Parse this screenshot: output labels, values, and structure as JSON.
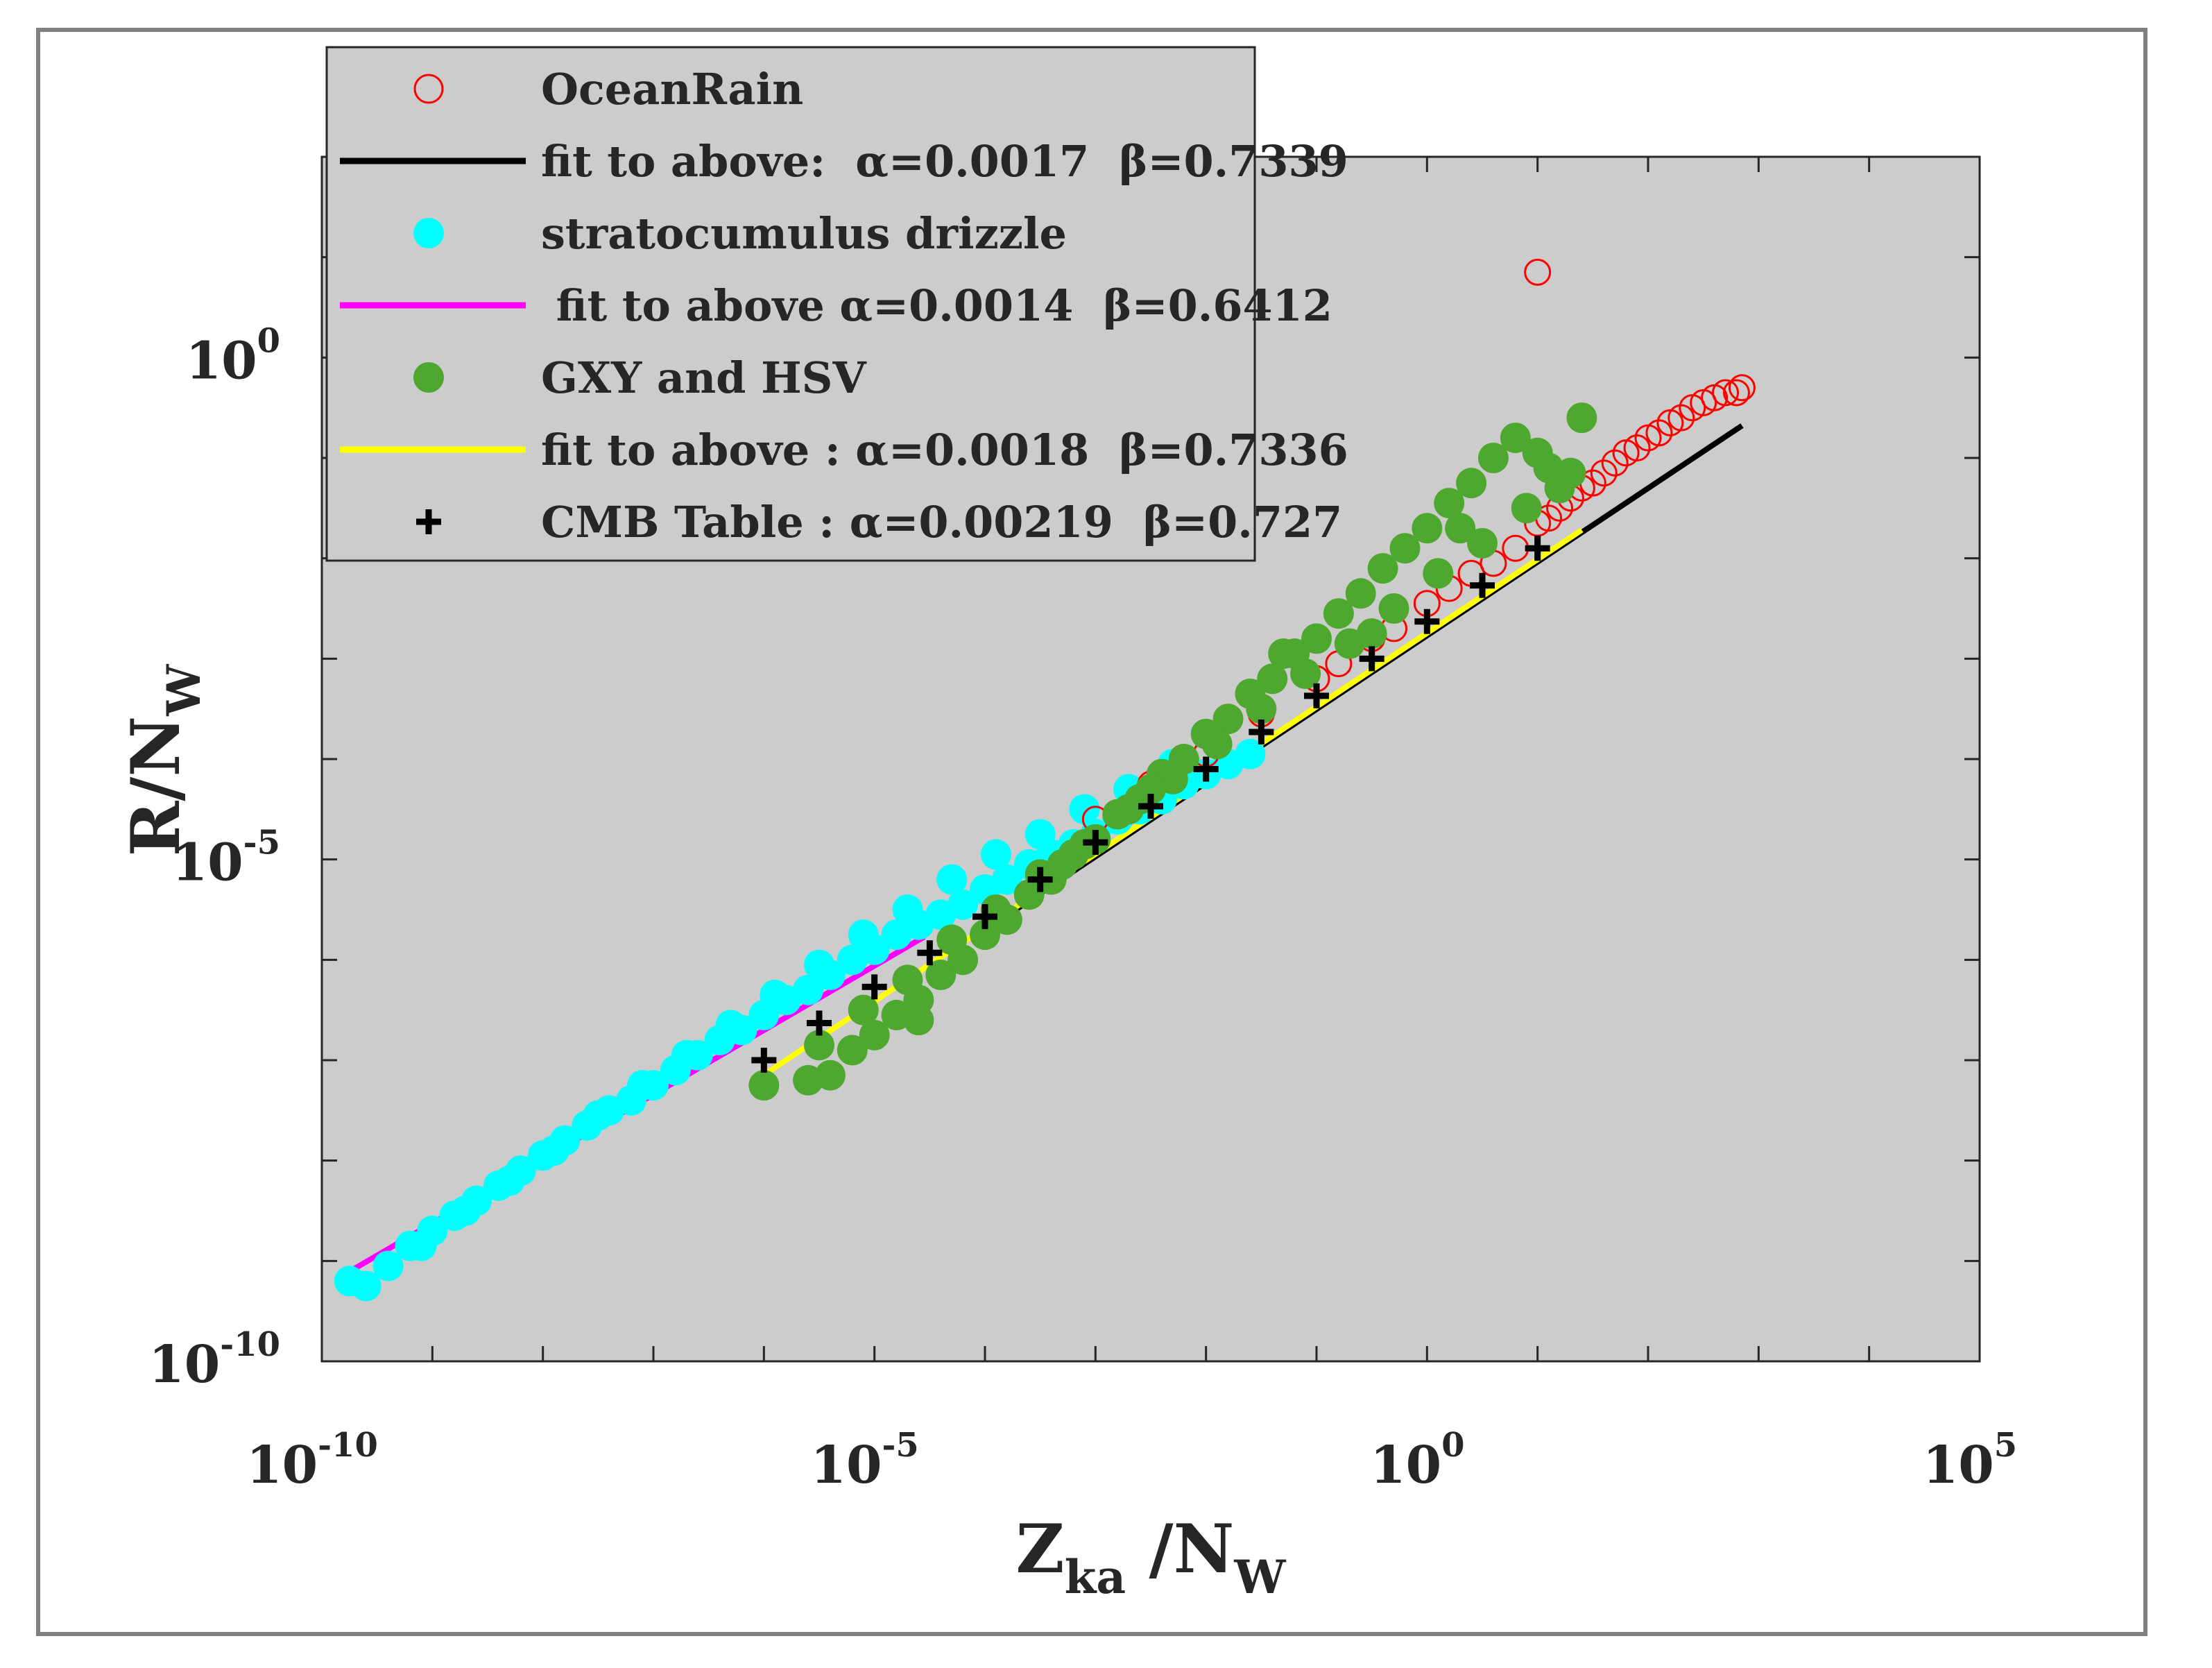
{
  "chart_data": {
    "type": "scatter",
    "title": "",
    "xlabel": {
      "main": "Z",
      "sub": "ka",
      "rest": " /N",
      "sub2": "W"
    },
    "ylabel": {
      "main": "R/N",
      "sub": "W"
    },
    "x_scale": "log",
    "y_scale": "log",
    "xlim_exp": [
      -10,
      5
    ],
    "ylim_exp": [
      -10,
      2
    ],
    "x_ticks": [
      {
        "base": "10",
        "exp": "-10",
        "v": -10
      },
      {
        "base": "10",
        "exp": "-5",
        "v": -5
      },
      {
        "base": "10",
        "exp": "0",
        "v": 0
      },
      {
        "base": "10",
        "exp": "5",
        "v": 5
      }
    ],
    "y_ticks": [
      {
        "base": "10",
        "exp": "-10",
        "v": -10
      },
      {
        "base": "10",
        "exp": "-5",
        "v": -5
      },
      {
        "base": "10",
        "exp": "0",
        "v": 0
      }
    ],
    "grid": false,
    "legend_position": "top-left",
    "background": "#cccccc",
    "legend": [
      {
        "label": "OceanRain",
        "marker": "open-circle",
        "color": "#ff0000"
      },
      {
        "label": "fit to above:  α=0.0017  β=0.7339",
        "marker": "line",
        "color": "#000000"
      },
      {
        "label": "stratocumulus drizzle",
        "marker": "filled-circle",
        "color": "#00ffff"
      },
      {
        "label": " fit to above α=0.0014  β=0.6412",
        "marker": "line",
        "color": "#ff00ff"
      },
      {
        "label": "GXY and HSV",
        "marker": "filled-circle",
        "color": "#4ea72e"
      },
      {
        "label": "fit to above : α=0.0018  β=0.7336",
        "marker": "line",
        "color": "#ffff00"
      },
      {
        "label": "CMB Table : α=0.00219  β=0.727",
        "marker": "plus",
        "color": "#000000"
      }
    ],
    "fits": [
      {
        "name": "OceanRain fit",
        "alpha": 0.0017,
        "beta": 0.7339,
        "color": "#000000",
        "x_range_exp": [
          -3.8,
          2.85
        ]
      },
      {
        "name": "stratocumulus drizzle fit",
        "alpha": 0.0014,
        "beta": 0.6412,
        "color": "#ff00ff",
        "x_range_exp": [
          -9.75,
          -4.55
        ]
      },
      {
        "name": "GXY and HSV fit",
        "alpha": 0.0018,
        "beta": 0.7336,
        "color": "#ffff00",
        "x_range_exp": [
          -6.1,
          1.4
        ]
      }
    ],
    "series": [
      {
        "name": "CMB Table",
        "marker": "plus",
        "color": "#000000",
        "x_exp": [
          -6.0,
          -5.5,
          -5.0,
          -4.5,
          -4.0,
          -3.5,
          -3.0,
          -2.5,
          -2.0,
          -1.5,
          -1.0,
          -0.5,
          0.0,
          0.5,
          1.0
        ],
        "y_exp": [
          -7.0,
          -6.63,
          -6.27,
          -5.93,
          -5.57,
          -5.2,
          -4.83,
          -4.47,
          -4.1,
          -3.73,
          -3.37,
          -3.0,
          -2.63,
          -2.27,
          -1.9
        ]
      },
      {
        "name": "OceanRain",
        "marker": "open-circle",
        "color": "#ff0000",
        "x_exp": [
          -3.0,
          -2.5,
          -2.0,
          -1.5,
          -1.0,
          -0.8,
          -0.5,
          -0.3,
          0.0,
          0.2,
          0.4,
          0.6,
          0.8,
          1.0,
          1.1,
          1.2,
          1.3,
          1.4,
          1.5,
          1.6,
          1.7,
          1.8,
          1.9,
          2.0,
          2.1,
          2.2,
          2.3,
          2.4,
          2.5,
          2.6,
          2.7,
          2.8,
          2.85,
          1.0
        ],
        "y_exp": [
          -4.6,
          -4.25,
          -3.95,
          -3.55,
          -3.2,
          -3.05,
          -2.8,
          -2.7,
          -2.45,
          -2.3,
          -2.15,
          -2.05,
          -1.9,
          -1.65,
          -1.6,
          -1.5,
          -1.4,
          -1.3,
          -1.25,
          -1.15,
          -1.05,
          -0.95,
          -0.9,
          -0.8,
          -0.75,
          -0.65,
          -0.6,
          -0.5,
          -0.45,
          -0.4,
          -0.35,
          -0.35,
          -0.3,
          0.85
        ]
      },
      {
        "name": "stratocumulus drizzle",
        "marker": "filled-circle",
        "color": "#00ffff",
        "x_exp": [
          -9.75,
          -9.6,
          -9.4,
          -9.2,
          -9.0,
          -8.8,
          -8.6,
          -8.4,
          -8.2,
          -8.0,
          -7.8,
          -7.6,
          -7.4,
          -7.2,
          -7.0,
          -6.8,
          -6.6,
          -6.4,
          -6.2,
          -6.0,
          -5.8,
          -5.6,
          -5.4,
          -5.2,
          -5.0,
          -4.8,
          -4.6,
          -4.4,
          -4.2,
          -4.0,
          -3.8,
          -3.6,
          -3.4,
          -3.2,
          -3.0,
          -2.8,
          -2.6,
          -2.4,
          -2.2,
          -2.0,
          -1.8,
          -1.6,
          -9.1,
          -8.7,
          -8.3,
          -7.9,
          -7.5,
          -7.1,
          -6.7,
          -6.3,
          -5.9,
          -5.5,
          -5.1,
          -4.7,
          -4.3,
          -3.9,
          -3.5,
          -3.1,
          -2.7,
          -2.3,
          -1.9
        ],
        "y_exp": [
          -9.2,
          -9.25,
          -9.05,
          -8.85,
          -8.7,
          -8.55,
          -8.4,
          -8.25,
          -8.1,
          -7.95,
          -7.8,
          -7.65,
          -7.5,
          -7.4,
          -7.25,
          -7.1,
          -6.95,
          -6.8,
          -6.7,
          -6.55,
          -6.4,
          -6.3,
          -6.15,
          -6.0,
          -5.9,
          -5.75,
          -5.65,
          -5.55,
          -5.45,
          -5.3,
          -5.2,
          -5.05,
          -4.95,
          -4.85,
          -4.75,
          -4.6,
          -4.5,
          -4.4,
          -4.25,
          -4.15,
          -4.05,
          -3.95,
          -8.85,
          -8.5,
          -8.2,
          -7.9,
          -7.55,
          -7.25,
          -6.95,
          -6.65,
          -6.35,
          -6.05,
          -5.75,
          -5.5,
          -5.2,
          -4.95,
          -4.75,
          -4.5,
          -4.3,
          -4.05,
          -3.85
        ]
      },
      {
        "name": "GXY and HSV",
        "marker": "filled-circle",
        "color": "#4ea72e",
        "x_exp": [
          -6.0,
          -5.6,
          -5.4,
          -5.2,
          -5.0,
          -4.8,
          -4.6,
          -4.4,
          -4.2,
          -4.0,
          -3.8,
          -3.6,
          -3.4,
          -3.2,
          -3.0,
          -2.8,
          -2.6,
          -2.4,
          -2.2,
          -2.0,
          -1.8,
          -1.6,
          -1.4,
          -1.2,
          -1.0,
          -0.8,
          -0.6,
          -0.4,
          -0.2,
          0.0,
          0.2,
          0.4,
          0.6,
          0.8,
          1.0,
          1.2,
          1.4,
          -5.5,
          -5.1,
          -4.7,
          -4.3,
          -3.9,
          -3.5,
          -3.1,
          -2.7,
          -2.3,
          -1.9,
          -1.5,
          -1.1,
          -0.7,
          -0.3,
          0.1,
          0.5,
          0.9,
          1.3,
          -4.6,
          -3.3,
          -2.5,
          -1.3,
          -0.5,
          0.3,
          1.1
        ],
        "y_exp": [
          -7.25,
          -7.2,
          -7.15,
          -6.9,
          -6.75,
          -6.55,
          -6.4,
          -6.15,
          -6.0,
          -5.75,
          -5.6,
          -5.35,
          -5.2,
          -4.95,
          -4.8,
          -4.55,
          -4.4,
          -4.15,
          -4.0,
          -3.75,
          -3.6,
          -3.35,
          -3.2,
          -2.95,
          -2.8,
          -2.55,
          -2.35,
          -2.1,
          -1.9,
          -1.7,
          -1.45,
          -1.25,
          -1.0,
          -0.8,
          -0.95,
          -1.3,
          -0.6,
          -6.85,
          -6.5,
          -6.2,
          -5.8,
          -5.5,
          -5.15,
          -4.85,
          -4.5,
          -4.2,
          -3.85,
          -3.5,
          -3.15,
          -2.85,
          -2.5,
          -2.15,
          -1.85,
          -1.5,
          -1.15,
          -6.6,
          -5.05,
          -4.3,
          -2.95,
          -2.75,
          -1.7,
          -1.1
        ]
      }
    ]
  }
}
